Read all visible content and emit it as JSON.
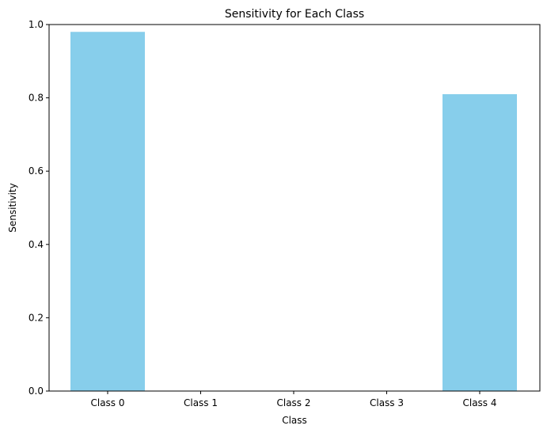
{
  "chart_data": {
    "type": "bar",
    "title": "Sensitivity for Each Class",
    "xlabel": "Class",
    "ylabel": "Sensitivity",
    "categories": [
      "Class 0",
      "Class 1",
      "Class 2",
      "Class 3",
      "Class 4"
    ],
    "values": [
      0.98,
      0.0,
      0.0,
      0.0,
      0.81
    ],
    "ylim": [
      0,
      1.0
    ],
    "yticks": [
      "0.0",
      "0.2",
      "0.4",
      "0.6",
      "0.8",
      "1.0"
    ],
    "grid": false,
    "bar_color": "#87ceeb"
  }
}
